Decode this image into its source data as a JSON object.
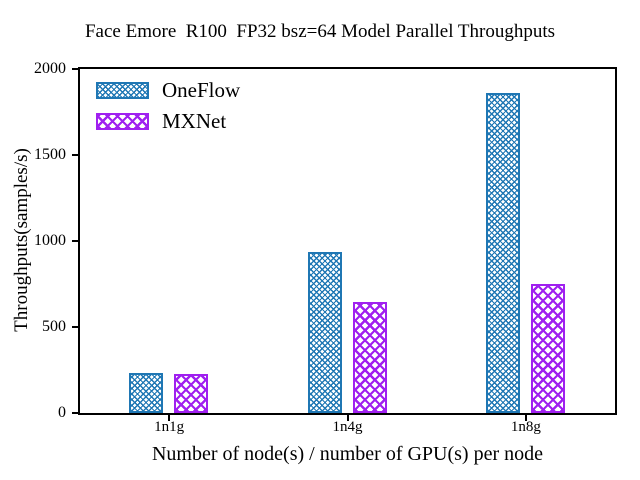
{
  "chart_data": {
    "type": "bar",
    "title": "Face Emore  R100  FP32 bsz=64 Model Parallel Throughputs",
    "xlabel": "Number of node(s) / number of GPU(s) per node",
    "ylabel": "Throughputs(samples/s)",
    "categories": [
      "1n1g",
      "1n4g",
      "1n8g"
    ],
    "series": [
      {
        "name": "OneFlow",
        "color": "#1f77b4",
        "values": [
          235,
          935,
          1860
        ]
      },
      {
        "name": "MXNet",
        "color": "#a020f0",
        "values": [
          225,
          645,
          750
        ]
      }
    ],
    "ylim": [
      0,
      2000
    ],
    "yticks": [
      0,
      500,
      1000,
      1500,
      2000
    ],
    "grid": false,
    "legend_position": "top-left",
    "colors": {
      "axis": "#000000",
      "background": "#ffffff"
    }
  }
}
